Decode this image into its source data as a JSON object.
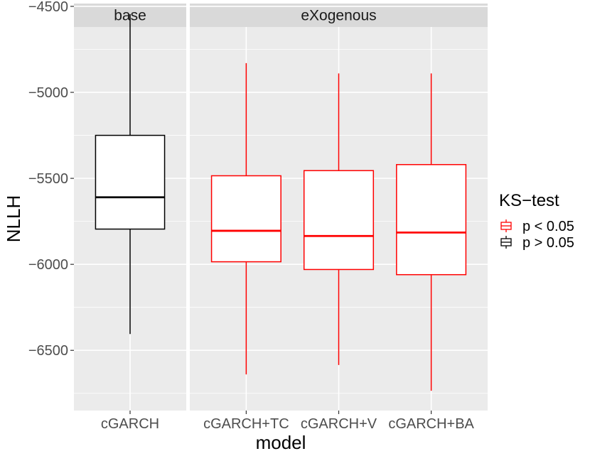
{
  "chart_data": {
    "type": "boxplot",
    "xlabel": "model",
    "ylabel": "NLLH",
    "ylim": [
      -6850,
      -4620
    ],
    "y_ticks": [
      -4500,
      -5000,
      -5500,
      -6000,
      -6500
    ],
    "y_tick_labels": [
      "−4500",
      "−5000",
      "−5500",
      "−6000",
      "−6500"
    ],
    "facets": [
      {
        "label": "base",
        "categories": [
          "cGARCH"
        ],
        "boxes": [
          {
            "category": "cGARCH",
            "min": -6405,
            "q1": -5795,
            "median": -5610,
            "q3": -5250,
            "max": -4545,
            "ks_group": "p > 0.05"
          }
        ]
      },
      {
        "label": "eXogenous",
        "categories": [
          "cGARCH+TC",
          "cGARCH+V",
          "cGARCH+BA"
        ],
        "boxes": [
          {
            "category": "cGARCH+TC",
            "min": -6640,
            "q1": -5985,
            "median": -5805,
            "q3": -5485,
            "max": -4830,
            "ks_group": "p < 0.05"
          },
          {
            "category": "cGARCH+V",
            "min": -6585,
            "q1": -6030,
            "median": -5835,
            "q3": -5455,
            "max": -4890,
            "ks_group": "p < 0.05"
          },
          {
            "category": "cGARCH+BA",
            "min": -6735,
            "q1": -6060,
            "median": -5815,
            "q3": -5420,
            "max": -4890,
            "ks_group": "p < 0.05"
          }
        ]
      }
    ],
    "legend": {
      "title": "KS−test",
      "position": "right",
      "entries": [
        {
          "label": "p < 0.05",
          "color": "#ff0000"
        },
        {
          "label": "p > 0.05",
          "color": "#000000"
        }
      ]
    },
    "colors": {
      "panel_bg": "#ebebeb",
      "grid": "#ffffff",
      "strip_bg": "#d9d9d9"
    },
    "grid": true
  }
}
